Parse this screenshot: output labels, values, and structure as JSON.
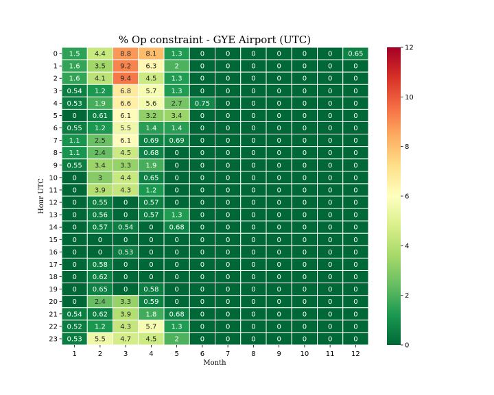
{
  "chart_data": {
    "type": "heatmap",
    "title": "% Op constraint - GYE Airport (UTC)",
    "xlabel": "Month",
    "ylabel": "Hour UTC",
    "x_categories": [
      "1",
      "2",
      "3",
      "4",
      "5",
      "6",
      "7",
      "8",
      "9",
      "10",
      "11",
      "12"
    ],
    "y_categories": [
      "0",
      "1",
      "2",
      "3",
      "4",
      "5",
      "6",
      "7",
      "8",
      "9",
      "10",
      "11",
      "12",
      "13",
      "14",
      "15",
      "16",
      "17",
      "18",
      "19",
      "20",
      "21",
      "22",
      "23"
    ],
    "colorscale": "RdYlGn_r",
    "vmin": 0,
    "vmax": 12,
    "colorbar_ticks": [
      "0",
      "2",
      "4",
      "6",
      "8",
      "10",
      "12"
    ],
    "values": [
      [
        "1.5",
        "4.4",
        "8.8",
        "8.1",
        "1.3",
        "0",
        "0",
        "0",
        "0",
        "0",
        "0",
        "0.65"
      ],
      [
        "1.6",
        "3.5",
        "9.2",
        "6.3",
        "2",
        "0",
        "0",
        "0",
        "0",
        "0",
        "0",
        "0"
      ],
      [
        "1.6",
        "4.1",
        "9.4",
        "4.5",
        "1.3",
        "0",
        "0",
        "0",
        "0",
        "0",
        "0",
        "0"
      ],
      [
        "0.54",
        "1.2",
        "6.8",
        "5.7",
        "1.3",
        "0",
        "0",
        "0",
        "0",
        "0",
        "0",
        "0"
      ],
      [
        "0.53",
        "1.9",
        "6.6",
        "5.6",
        "2.7",
        "0.75",
        "0",
        "0",
        "0",
        "0",
        "0",
        "0"
      ],
      [
        "0",
        "0.61",
        "6.1",
        "3.2",
        "3.4",
        "0",
        "0",
        "0",
        "0",
        "0",
        "0",
        "0"
      ],
      [
        "0.55",
        "1.2",
        "5.5",
        "1.4",
        "1.4",
        "0",
        "0",
        "0",
        "0",
        "0",
        "0",
        "0"
      ],
      [
        "1.1",
        "2.5",
        "6.1",
        "0.69",
        "0.69",
        "0",
        "0",
        "0",
        "0",
        "0",
        "0",
        "0"
      ],
      [
        "1.1",
        "2.4",
        "4.5",
        "0.68",
        "0",
        "0",
        "0",
        "0",
        "0",
        "0",
        "0",
        "0"
      ],
      [
        "0.55",
        "3.4",
        "3.3",
        "1.9",
        "0",
        "0",
        "0",
        "0",
        "0",
        "0",
        "0",
        "0"
      ],
      [
        "0",
        "3",
        "4.4",
        "0.65",
        "0",
        "0",
        "0",
        "0",
        "0",
        "0",
        "0",
        "0"
      ],
      [
        "0",
        "3.9",
        "4.3",
        "1.2",
        "0",
        "0",
        "0",
        "0",
        "0",
        "0",
        "0",
        "0"
      ],
      [
        "0",
        "0.55",
        "0",
        "0.57",
        "0",
        "0",
        "0",
        "0",
        "0",
        "0",
        "0",
        "0"
      ],
      [
        "0",
        "0.56",
        "0",
        "0.57",
        "1.3",
        "0",
        "0",
        "0",
        "0",
        "0",
        "0",
        "0"
      ],
      [
        "0",
        "0.57",
        "0.54",
        "0",
        "0.68",
        "0",
        "0",
        "0",
        "0",
        "0",
        "0",
        "0"
      ],
      [
        "0",
        "0",
        "0",
        "0",
        "0",
        "0",
        "0",
        "0",
        "0",
        "0",
        "0",
        "0"
      ],
      [
        "0",
        "0",
        "0.53",
        "0",
        "0",
        "0",
        "0",
        "0",
        "0",
        "0",
        "0",
        "0"
      ],
      [
        "0",
        "0.58",
        "0",
        "0",
        "0",
        "0",
        "0",
        "0",
        "0",
        "0",
        "0",
        "0"
      ],
      [
        "0",
        "0.62",
        "0",
        "0",
        "0",
        "0",
        "0",
        "0",
        "0",
        "0",
        "0",
        "0"
      ],
      [
        "0",
        "0.65",
        "0",
        "0.58",
        "0",
        "0",
        "0",
        "0",
        "0",
        "0",
        "0",
        "0"
      ],
      [
        "0",
        "2.4",
        "3.3",
        "0.59",
        "0",
        "0",
        "0",
        "0",
        "0",
        "0",
        "0",
        "0"
      ],
      [
        "0.54",
        "0.62",
        "3.9",
        "1.8",
        "0.68",
        "0",
        "0",
        "0",
        "0",
        "0",
        "0",
        "0"
      ],
      [
        "0.52",
        "1.2",
        "4.3",
        "5.7",
        "1.3",
        "0",
        "0",
        "0",
        "0",
        "0",
        "0",
        "0"
      ],
      [
        "0.53",
        "5.5",
        "4.7",
        "4.5",
        "2",
        "0",
        "0",
        "0",
        "0",
        "0",
        "0",
        "0"
      ]
    ]
  }
}
